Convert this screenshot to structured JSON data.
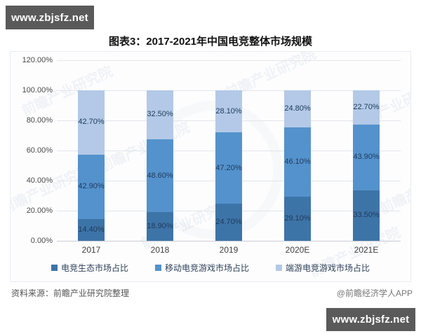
{
  "watermark_top": {
    "text": "www.zbjsfz.net"
  },
  "watermark_bottom": {
    "text": "www.zbjsfz.net"
  },
  "title": "图表3：2017-2021年中国电竞整体市场规模",
  "source": {
    "left": "资料来源：前瞻产业研究院整理",
    "right": "@前瞻经济学人APP"
  },
  "panel_watermark_text": "前瞻产业研究院",
  "colors": {
    "brand_box_bg": "#5a5a5a",
    "series_eco": "#3d74a8",
    "series_mobile": "#5492cd",
    "series_pc": "#b3c9e7",
    "bar_label_text": "#1f3a5a",
    "gridline": "#e2e5ea"
  },
  "chart_data": {
    "type": "bar",
    "stacked": true,
    "title": "图表3：2017-2021年中国电竞整体市场规模",
    "categories": [
      "2017",
      "2018",
      "2019",
      "2020E",
      "2021E"
    ],
    "series": [
      {
        "name": "电竞生态市场占比",
        "color": "#3d74a8",
        "values": [
          14.4,
          18.9,
          24.7,
          29.1,
          33.5
        ]
      },
      {
        "name": "移动电竞游戏市场占比",
        "color": "#5492cd",
        "values": [
          42.9,
          48.6,
          47.2,
          46.1,
          43.9
        ]
      },
      {
        "name": "端游电竞游戏市场占比",
        "color": "#b3c9e7",
        "values": [
          42.7,
          32.5,
          28.1,
          24.8,
          22.7
        ]
      }
    ],
    "xlabel": "",
    "ylabel": "",
    "ylim": [
      0,
      120
    ],
    "yticks": [
      "120.00%",
      "100.00%",
      "80.00%",
      "60.00%",
      "40.00%",
      "20.00%",
      "0.00%"
    ],
    "value_suffix": "%",
    "grid": true,
    "legend_position": "bottom"
  }
}
